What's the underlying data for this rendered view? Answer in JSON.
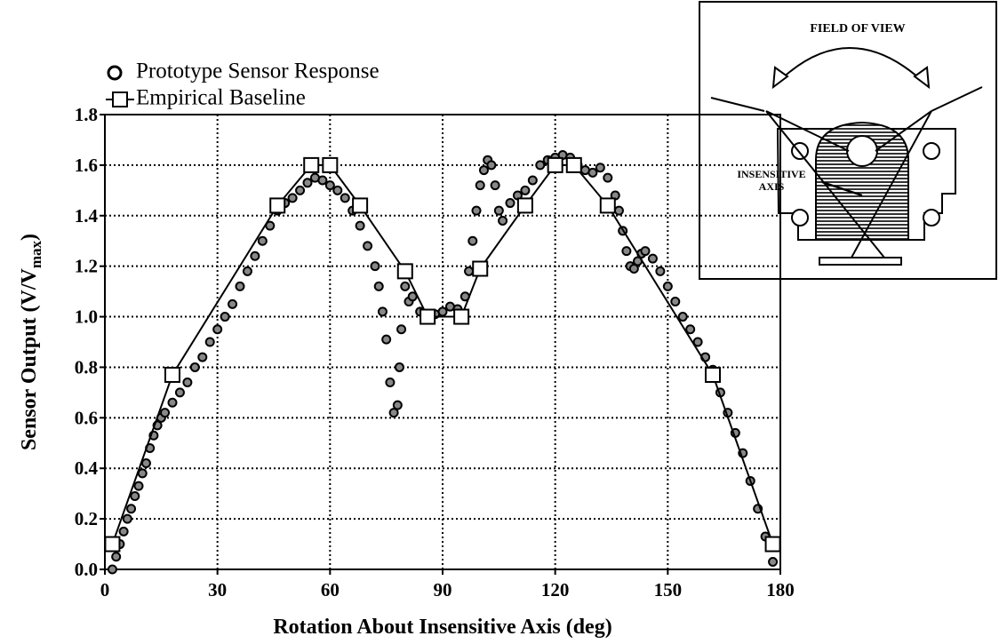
{
  "chart_data": {
    "type": "scatter",
    "xlabel": "Rotation About Insensitive Axis (deg)",
    "ylabel": {
      "text": "Sensor Output (V/V",
      "sub": "max",
      "end": ")"
    },
    "xlim": [
      0,
      180
    ],
    "ylim": [
      0,
      1.8
    ],
    "xticks": [
      0,
      30,
      60,
      90,
      120,
      150,
      180
    ],
    "yticks": [
      {
        "value": 0,
        "label": "0.0"
      },
      0.2,
      0.4,
      0.6,
      0.8,
      {
        "value": 1,
        "label": "1.0"
      },
      1.2,
      1.4,
      1.6,
      1.8
    ],
    "grid": true,
    "legend": "upper left",
    "series": [
      {
        "name": "Prototype Sensor Response",
        "color": "#000000",
        "marker": "circle",
        "x": [
          2,
          3,
          4,
          5,
          6,
          7,
          8,
          9,
          10,
          11,
          12,
          13,
          14,
          15,
          16,
          18,
          20,
          22,
          24,
          26,
          28,
          30,
          32,
          34,
          36,
          38,
          40,
          42,
          44,
          46,
          48,
          50,
          52,
          54,
          56,
          58,
          60,
          62,
          64,
          66,
          68,
          70,
          72,
          73,
          74,
          75,
          76,
          77,
          78,
          78.5,
          79,
          80,
          81,
          82,
          84,
          86,
          88,
          90,
          92,
          94,
          96,
          97,
          98,
          99,
          100,
          101,
          102,
          103,
          104,
          105,
          106,
          108,
          110,
          112,
          114,
          116,
          118,
          120,
          122,
          124,
          126,
          128,
          130,
          132,
          134,
          136,
          137,
          138,
          139,
          140,
          141,
          142,
          143,
          144,
          146,
          148,
          150,
          152,
          154,
          156,
          158,
          160,
          162,
          164,
          166,
          168,
          170,
          172,
          174,
          176,
          178
        ],
        "values": [
          0,
          0.05,
          0.1,
          0.15,
          0.2,
          0.24,
          0.29,
          0.33,
          0.38,
          0.42,
          0.48,
          0.53,
          0.57,
          0.6,
          0.62,
          0.66,
          0.7,
          0.74,
          0.8,
          0.84,
          0.9,
          0.95,
          1.0,
          1.05,
          1.12,
          1.18,
          1.24,
          1.3,
          1.36,
          1.42,
          1.45,
          1.47,
          1.5,
          1.53,
          1.55,
          1.54,
          1.52,
          1.5,
          1.47,
          1.42,
          1.36,
          1.28,
          1.2,
          1.12,
          1.02,
          0.91,
          0.74,
          0.62,
          0.65,
          0.8,
          0.95,
          1.12,
          1.06,
          1.08,
          1.02,
          1.0,
          1.01,
          1.02,
          1.04,
          1.03,
          1.08,
          1.18,
          1.3,
          1.42,
          1.52,
          1.58,
          1.62,
          1.6,
          1.52,
          1.42,
          1.38,
          1.45,
          1.48,
          1.5,
          1.54,
          1.6,
          1.62,
          1.63,
          1.64,
          1.63,
          1.6,
          1.58,
          1.57,
          1.59,
          1.55,
          1.48,
          1.42,
          1.34,
          1.26,
          1.2,
          1.19,
          1.22,
          1.25,
          1.26,
          1.23,
          1.18,
          1.12,
          1.06,
          1.0,
          0.95,
          0.9,
          0.84,
          0.79,
          0.7,
          0.62,
          0.54,
          0.46,
          0.35,
          0.24,
          0.13,
          0.03
        ]
      },
      {
        "name": "Empirical Baseline",
        "color": "#000000",
        "marker": "square",
        "line": true,
        "x": [
          2,
          18,
          46,
          55,
          60,
          68,
          80,
          86,
          95,
          100,
          112,
          120,
          125,
          134,
          162,
          178
        ],
        "values": [
          0.1,
          0.77,
          1.44,
          1.6,
          1.6,
          1.44,
          1.18,
          1.0,
          1.0,
          1.19,
          1.44,
          1.6,
          1.6,
          1.44,
          0.77,
          0.1
        ]
      }
    ],
    "inset": {
      "title": "FIELD OF VIEW",
      "label_lines": [
        "INSENSITIVE",
        "AXIS"
      ]
    }
  }
}
